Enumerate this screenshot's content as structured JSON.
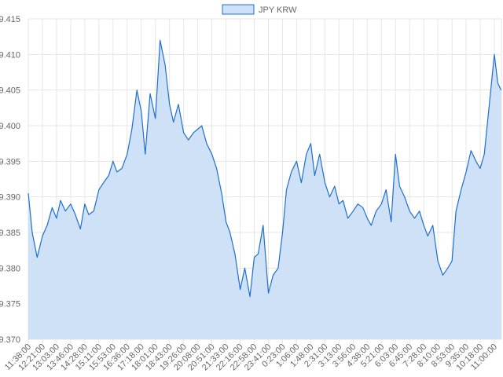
{
  "chart_data": {
    "type": "area",
    "title": "",
    "xlabel": "",
    "ylabel": "",
    "legend": {
      "position": "top-center"
    },
    "grid": true,
    "colors": {
      "line": "#1e6fd0",
      "fill": "#cfe1f6",
      "grid": "#e6e6e6",
      "text": "#666666"
    },
    "ylim": [
      9.37,
      9.415
    ],
    "yticks": [
      "9.370",
      "9.375",
      "9.380",
      "9.385",
      "9.390",
      "9.395",
      "9.400",
      "9.405",
      "9.410",
      "9.415"
    ],
    "xticks": [
      "11:38:00",
      "12:21:00",
      "13:03:00",
      "13:46:00",
      "14:28:00",
      "15:11:00",
      "15:53:00",
      "16:36:00",
      "17:18:00",
      "18:01:00",
      "18:43:00",
      "19:26:00",
      "20:08:00",
      "20:51:00",
      "21:33:00",
      "22:16:00",
      "22:58:00",
      "23:41:00",
      "0:23:00",
      "1:06:00",
      "1:48:00",
      "2:31:00",
      "3:13:00",
      "3:56:00",
      "4:38:00",
      "5:21:00",
      "6:03:00",
      "6:45:00",
      "7:28:00",
      "8:10:00",
      "8:53:00",
      "9:35:00",
      "10:18:00",
      "11:00:00"
    ],
    "series": [
      {
        "name": "JPY KRW",
        "x": [
          "11:38:00",
          "11:50:00",
          "12:05:00",
          "12:21:00",
          "12:35:00",
          "12:50:00",
          "13:03:00",
          "13:15:00",
          "13:30:00",
          "13:46:00",
          "14:00:00",
          "14:15:00",
          "14:28:00",
          "14:40:00",
          "14:55:00",
          "15:11:00",
          "15:25:00",
          "15:40:00",
          "15:53:00",
          "16:05:00",
          "16:20:00",
          "16:36:00",
          "16:50:00",
          "17:05:00",
          "17:18:00",
          "17:30:00",
          "17:45:00",
          "18:01:00",
          "18:15:00",
          "18:30:00",
          "18:43:00",
          "18:55:00",
          "19:10:00",
          "19:26:00",
          "19:40:00",
          "19:55:00",
          "20:08:00",
          "20:20:00",
          "20:35:00",
          "20:51:00",
          "21:05:00",
          "21:20:00",
          "21:33:00",
          "21:45:00",
          "22:00:00",
          "22:16:00",
          "22:30:00",
          "22:45:00",
          "22:58:00",
          "23:10:00",
          "23:25:00",
          "23:41:00",
          "23:55:00",
          "0:10:00",
          "0:23:00",
          "0:35:00",
          "0:50:00",
          "1:06:00",
          "1:20:00",
          "1:35:00",
          "1:48:00",
          "2:00:00",
          "2:15:00",
          "2:31:00",
          "2:45:00",
          "3:00:00",
          "3:13:00",
          "3:25:00",
          "3:40:00",
          "3:56:00",
          "4:10:00",
          "4:25:00",
          "4:38:00",
          "4:50:00",
          "5:05:00",
          "5:21:00",
          "5:35:00",
          "5:50:00",
          "6:03:00",
          "6:15:00",
          "6:30:00",
          "6:45:00",
          "7:00:00",
          "7:15:00",
          "7:28:00",
          "7:40:00",
          "7:55:00",
          "8:10:00",
          "8:25:00",
          "8:40:00",
          "8:53:00",
          "9:05:00",
          "9:20:00",
          "9:35:00",
          "9:50:00",
          "10:05:00",
          "10:18:00",
          "10:30:00",
          "10:45:00",
          "11:00:00",
          "11:10:00",
          "11:20:00"
        ],
        "values": [
          9.3905,
          9.385,
          9.3815,
          9.3845,
          9.386,
          9.3885,
          9.387,
          9.3895,
          9.388,
          9.389,
          9.3875,
          9.3855,
          9.389,
          9.3875,
          9.388,
          9.391,
          9.392,
          9.393,
          9.395,
          9.3935,
          9.394,
          9.396,
          9.3995,
          9.405,
          9.402,
          9.396,
          9.4045,
          9.401,
          9.412,
          9.4085,
          9.403,
          9.4005,
          9.403,
          9.399,
          9.398,
          9.399,
          9.3995,
          9.4,
          9.3975,
          9.396,
          9.394,
          9.3905,
          9.3865,
          9.385,
          9.382,
          9.377,
          9.38,
          9.376,
          9.3815,
          9.382,
          9.386,
          9.3765,
          9.379,
          9.38,
          9.385,
          9.391,
          9.3935,
          9.395,
          9.392,
          9.396,
          9.3975,
          9.393,
          9.396,
          9.392,
          9.39,
          9.3915,
          9.389,
          9.3895,
          9.387,
          9.388,
          9.389,
          9.3885,
          9.387,
          9.386,
          9.388,
          9.389,
          9.391,
          9.3865,
          9.396,
          9.3915,
          9.39,
          9.388,
          9.387,
          9.388,
          9.386,
          9.3845,
          9.386,
          9.381,
          9.379,
          9.38,
          9.381,
          9.388,
          9.391,
          9.3935,
          9.3965,
          9.395,
          9.394,
          9.396,
          9.403,
          9.41,
          9.406,
          9.405
        ]
      }
    ]
  }
}
